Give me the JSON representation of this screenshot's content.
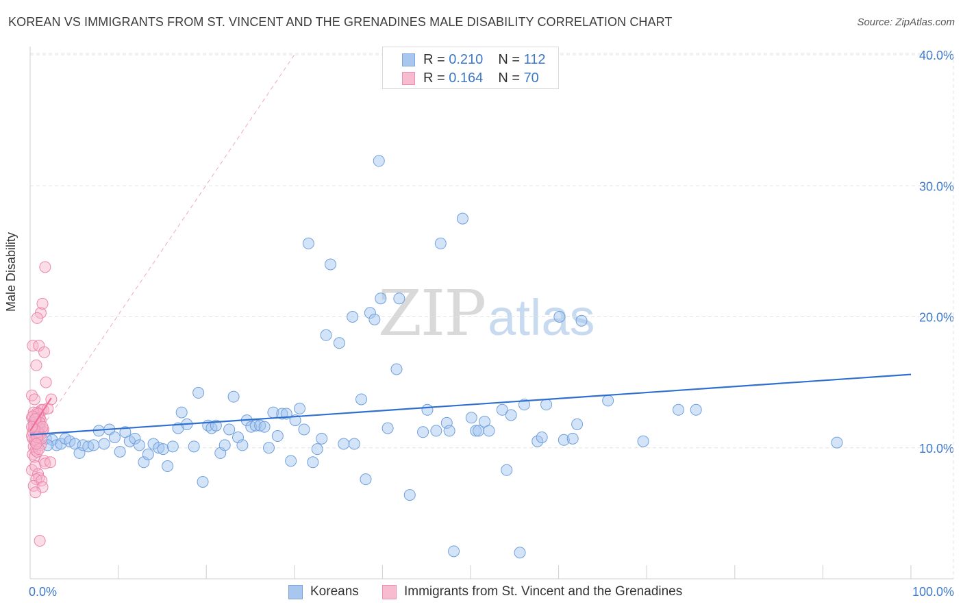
{
  "title": "KOREAN VS IMMIGRANTS FROM ST. VINCENT AND THE GRENADINES MALE DISABILITY CORRELATION CHART",
  "source": "Source: ZipAtlas.com",
  "watermark": {
    "zip": "ZIP",
    "atlas": "atlas"
  },
  "legend": {
    "series": [
      {
        "r_label": "R = ",
        "r_value": "0.210",
        "n_label": "N = ",
        "n_value": "112",
        "color": "#a9c7ee",
        "border": "#7aa6e0"
      },
      {
        "r_label": "R = ",
        "r_value": "0.164",
        "n_label": "N = ",
        "n_value": "70",
        "color": "#f7bcd0",
        "border": "#ef8fb0"
      }
    ]
  },
  "bottom_legend": [
    {
      "label": "Koreans",
      "color": "#a9c7ee",
      "border": "#7aa6e0"
    },
    {
      "label": "Immigrants from St. Vincent and the Grenadines",
      "color": "#f7bcd0",
      "border": "#ef8fb0"
    }
  ],
  "chart_data": {
    "type": "scatter",
    "title": "KOREAN VS IMMIGRANTS FROM ST. VINCENT AND THE GRENADINES MALE DISABILITY CORRELATION CHART",
    "xlabel": "",
    "ylabel": "Male Disability",
    "xlim": [
      0,
      100
    ],
    "ylim": [
      0,
      40.5
    ],
    "x_tick_labels": [
      {
        "value": 0,
        "label": "0.0%"
      },
      {
        "value": 100,
        "label": "100.0%"
      }
    ],
    "y_ticks": [
      {
        "value": 10,
        "label": "10.0%"
      },
      {
        "value": 20,
        "label": "20.0%"
      },
      {
        "value": 30,
        "label": "30.0%"
      },
      {
        "value": 40,
        "label": "40.0%"
      }
    ],
    "grid": true,
    "legend_position": "top-center",
    "colors": {
      "koreans_fill": "rgba(160,195,240,0.45)",
      "koreans_stroke": "#6f9fdc",
      "vincent_fill": "rgba(247,180,205,0.45)",
      "vincent_stroke": "#ec86a8",
      "koreans_trend": "#2f6fcf",
      "vincent_trend": "#ef6d98",
      "grid": "#e3e3e3",
      "tick_label": "#3d78c9"
    },
    "series": [
      {
        "name": "Koreans",
        "R": 0.21,
        "N": 112,
        "trend": {
          "x": [
            0,
            100
          ],
          "y": [
            11.0,
            15.6
          ]
        },
        "points": [
          [
            0.8,
            11.5
          ],
          [
            1.2,
            11.0
          ],
          [
            1.8,
            10.7
          ],
          [
            2.5,
            10.6
          ],
          [
            3.0,
            10.2
          ],
          [
            3.5,
            10.3
          ],
          [
            4.0,
            10.7
          ],
          [
            4.5,
            10.5
          ],
          [
            5.1,
            10.3
          ],
          [
            5.6,
            9.6
          ],
          [
            6.0,
            10.2
          ],
          [
            6.6,
            10.1
          ],
          [
            7.2,
            10.2
          ],
          [
            7.8,
            11.3
          ],
          [
            8.4,
            10.3
          ],
          [
            9.0,
            11.4
          ],
          [
            9.6,
            10.8
          ],
          [
            10.2,
            9.7
          ],
          [
            10.8,
            11.2
          ],
          [
            11.3,
            10.5
          ],
          [
            11.9,
            10.7
          ],
          [
            12.4,
            10.2
          ],
          [
            12.9,
            8.9
          ],
          [
            13.4,
            9.5
          ],
          [
            14.0,
            10.3
          ],
          [
            14.6,
            10.0
          ],
          [
            15.1,
            9.9
          ],
          [
            15.6,
            8.6
          ],
          [
            16.2,
            10.1
          ],
          [
            16.8,
            11.5
          ],
          [
            17.2,
            12.7
          ],
          [
            17.8,
            11.8
          ],
          [
            18.6,
            10.1
          ],
          [
            19.1,
            14.2
          ],
          [
            19.6,
            7.4
          ],
          [
            20.2,
            11.7
          ],
          [
            20.6,
            11.5
          ],
          [
            21.1,
            11.7
          ],
          [
            21.6,
            9.6
          ],
          [
            22.1,
            10.2
          ],
          [
            22.6,
            11.4
          ],
          [
            23.1,
            13.9
          ],
          [
            23.6,
            10.8
          ],
          [
            24.1,
            10.2
          ],
          [
            24.6,
            12.1
          ],
          [
            25.1,
            11.6
          ],
          [
            25.6,
            11.7
          ],
          [
            26.1,
            11.7
          ],
          [
            26.6,
            11.6
          ],
          [
            27.1,
            10.0
          ],
          [
            27.6,
            12.7
          ],
          [
            28.1,
            10.9
          ],
          [
            28.6,
            12.6
          ],
          [
            29.1,
            12.6
          ],
          [
            29.6,
            9.0
          ],
          [
            30.1,
            12.1
          ],
          [
            30.6,
            13.0
          ],
          [
            31.1,
            11.4
          ],
          [
            31.6,
            25.6
          ],
          [
            32.1,
            8.9
          ],
          [
            32.6,
            9.9
          ],
          [
            33.1,
            10.7
          ],
          [
            33.6,
            18.6
          ],
          [
            34.1,
            24.0
          ],
          [
            35.1,
            18.0
          ],
          [
            35.6,
            10.3
          ],
          [
            36.6,
            20.0
          ],
          [
            36.8,
            10.3
          ],
          [
            37.6,
            13.7
          ],
          [
            38.1,
            7.6
          ],
          [
            38.6,
            20.3
          ],
          [
            39.1,
            19.8
          ],
          [
            39.6,
            31.9
          ],
          [
            39.8,
            21.4
          ],
          [
            40.6,
            11.5
          ],
          [
            41.6,
            16.0
          ],
          [
            41.9,
            21.4
          ],
          [
            43.1,
            6.4
          ],
          [
            44.6,
            11.2
          ],
          [
            45.1,
            12.9
          ],
          [
            46.1,
            11.3
          ],
          [
            46.6,
            25.6
          ],
          [
            47.3,
            11.9
          ],
          [
            47.6,
            11.3
          ],
          [
            48.1,
            2.1
          ],
          [
            49.1,
            27.5
          ],
          [
            50.1,
            12.3
          ],
          [
            50.6,
            11.3
          ],
          [
            50.9,
            11.3
          ],
          [
            51.6,
            12.0
          ],
          [
            52.1,
            11.3
          ],
          [
            53.6,
            12.9
          ],
          [
            54.1,
            8.3
          ],
          [
            54.6,
            12.5
          ],
          [
            55.6,
            2.0
          ],
          [
            56.1,
            13.3
          ],
          [
            57.6,
            10.5
          ],
          [
            58.1,
            10.8
          ],
          [
            58.6,
            13.3
          ],
          [
            60.1,
            20.0
          ],
          [
            60.6,
            10.6
          ],
          [
            61.6,
            10.7
          ],
          [
            62.1,
            11.8
          ],
          [
            62.6,
            19.7
          ],
          [
            65.6,
            13.6
          ],
          [
            69.6,
            10.5
          ],
          [
            73.6,
            12.9
          ],
          [
            75.6,
            12.9
          ],
          [
            91.6,
            10.4
          ],
          [
            0.4,
            12.0
          ],
          [
            1.0,
            11.6
          ],
          [
            2.0,
            10.2
          ]
        ]
      },
      {
        "name": "Immigrants from St. Vincent and the Grenadines",
        "R": 0.164,
        "N": 70,
        "trend": {
          "x": [
            0,
            2.4
          ],
          "y": [
            11.3,
            13.8
          ]
        },
        "points": [
          [
            0.2,
            12.3
          ],
          [
            0.4,
            11.5
          ],
          [
            0.5,
            12.1
          ],
          [
            0.6,
            11.0
          ],
          [
            0.3,
            10.7
          ],
          [
            0.8,
            11.8
          ],
          [
            1.0,
            12.5
          ],
          [
            0.7,
            11.3
          ],
          [
            1.2,
            12.1
          ],
          [
            0.4,
            10.1
          ],
          [
            0.9,
            10.9
          ],
          [
            1.4,
            11.3
          ],
          [
            0.6,
            9.8
          ],
          [
            1.1,
            11.5
          ],
          [
            0.3,
            9.5
          ],
          [
            0.5,
            9.3
          ],
          [
            0.8,
            10.5
          ],
          [
            1.3,
            12.9
          ],
          [
            0.2,
            8.3
          ],
          [
            0.6,
            8.6
          ],
          [
            0.9,
            8.0
          ],
          [
            1.6,
            9.0
          ],
          [
            1.0,
            7.7
          ],
          [
            0.7,
            7.6
          ],
          [
            1.3,
            7.5
          ],
          [
            0.4,
            7.1
          ],
          [
            1.4,
            7.0
          ],
          [
            0.6,
            6.6
          ],
          [
            1.7,
            8.8
          ],
          [
            2.3,
            8.9
          ],
          [
            0.2,
            14.0
          ],
          [
            0.5,
            13.7
          ],
          [
            0.8,
            12.7
          ],
          [
            1.1,
            12.3
          ],
          [
            1.5,
            12.9
          ],
          [
            2.0,
            13.0
          ],
          [
            2.4,
            13.7
          ],
          [
            0.3,
            17.8
          ],
          [
            1.0,
            17.8
          ],
          [
            1.6,
            17.3
          ],
          [
            0.7,
            16.3
          ],
          [
            1.8,
            15.0
          ],
          [
            1.2,
            20.3
          ],
          [
            0.8,
            19.9
          ],
          [
            1.4,
            21.0
          ],
          [
            1.7,
            23.8
          ],
          [
            1.1,
            2.9
          ],
          [
            0.4,
            12.7
          ],
          [
            0.9,
            12.6
          ],
          [
            1.5,
            11.4
          ],
          [
            0.3,
            11.2
          ],
          [
            0.6,
            10.4
          ],
          [
            1.2,
            10.2
          ],
          [
            0.5,
            10.6
          ],
          [
            0.8,
            9.7
          ],
          [
            0.2,
            10.9
          ],
          [
            1.0,
            11.0
          ],
          [
            1.3,
            10.7
          ],
          [
            0.7,
            12.0
          ],
          [
            0.4,
            11.7
          ],
          [
            1.1,
            11.9
          ],
          [
            0.9,
            11.2
          ],
          [
            0.3,
            12.4
          ],
          [
            0.6,
            12.2
          ],
          [
            1.4,
            11.6
          ],
          [
            0.5,
            11.4
          ],
          [
            0.8,
            10.8
          ],
          [
            0.2,
            11.6
          ],
          [
            1.0,
            9.9
          ],
          [
            0.7,
            10.3
          ]
        ]
      }
    ]
  }
}
